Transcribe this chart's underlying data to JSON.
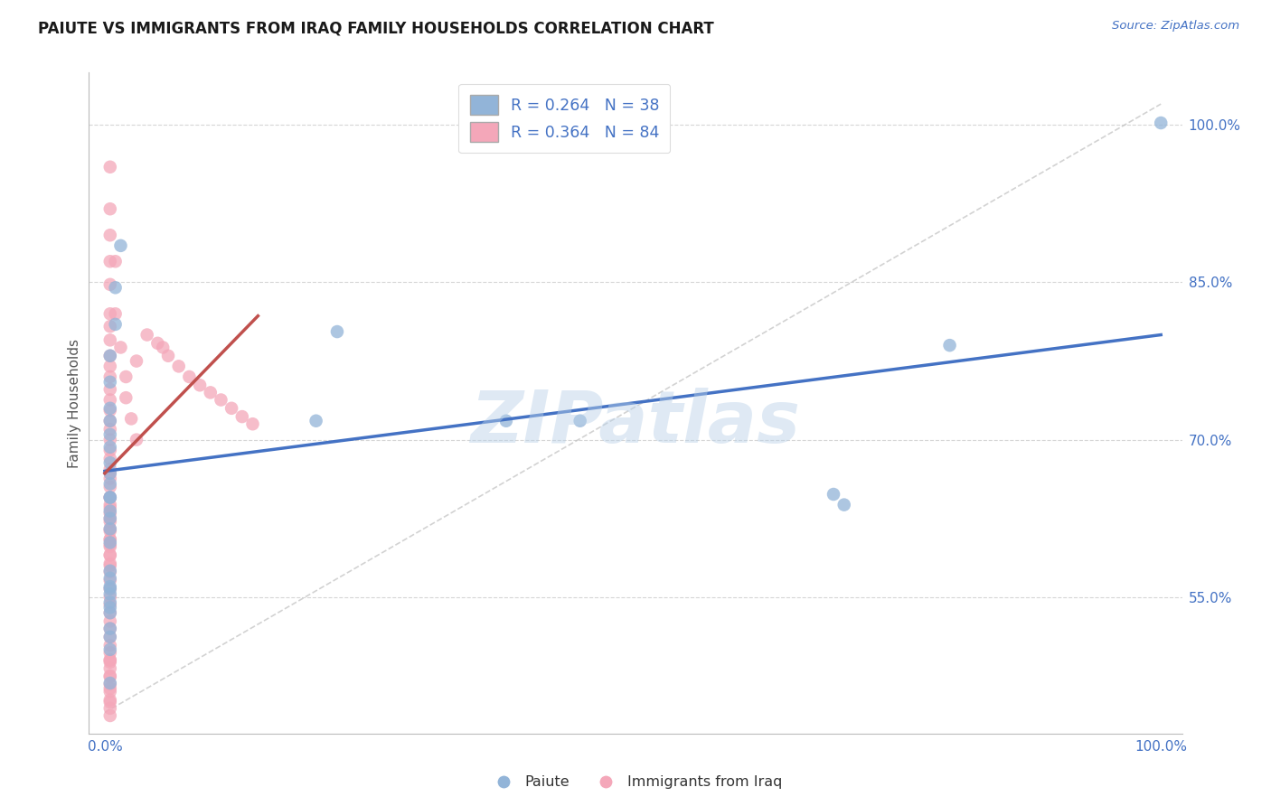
{
  "title": "PAIUTE VS IMMIGRANTS FROM IRAQ FAMILY HOUSEHOLDS CORRELATION CHART",
  "source": "Source: ZipAtlas.com",
  "ylabel": "Family Households",
  "legend_label1": "Paiute",
  "legend_label2": "Immigrants from Iraq",
  "r1": 0.264,
  "n1": 38,
  "r2": 0.364,
  "n2": 84,
  "color_blue": "#92b4d8",
  "color_pink": "#f4a7b9",
  "color_blue_line": "#4472c4",
  "color_pink_line": "#c0504d",
  "background_color": "#FFFFFF",
  "watermark": "ZIPatlas",
  "watermark_color": "#b8d0e8",
  "paiute_x": [
    0.015,
    0.01,
    0.01,
    0.005,
    0.005,
    0.005,
    0.005,
    0.005,
    0.005,
    0.005,
    0.005,
    0.005,
    0.005,
    0.005,
    0.005,
    0.005,
    0.22,
    0.2,
    0.38,
    0.005,
    0.005,
    0.005,
    0.005,
    0.005,
    0.45,
    0.005,
    0.005,
    0.005,
    0.005,
    0.005,
    0.005,
    0.69,
    0.7,
    0.8,
    0.005,
    1.0,
    0.005,
    0.005
  ],
  "paiute_y": [
    0.885,
    0.845,
    0.81,
    0.78,
    0.755,
    0.73,
    0.718,
    0.705,
    0.693,
    0.678,
    0.668,
    0.658,
    0.645,
    0.632,
    0.625,
    0.615,
    0.803,
    0.718,
    0.718,
    0.602,
    0.575,
    0.568,
    0.56,
    0.553,
    0.718,
    0.545,
    0.54,
    0.535,
    0.52,
    0.512,
    0.5,
    0.648,
    0.638,
    0.79,
    0.468,
    1.002,
    0.558,
    0.645
  ],
  "iraq_x": [
    0.005,
    0.005,
    0.005,
    0.005,
    0.005,
    0.005,
    0.005,
    0.005,
    0.005,
    0.005,
    0.005,
    0.005,
    0.005,
    0.005,
    0.005,
    0.005,
    0.005,
    0.005,
    0.005,
    0.005,
    0.005,
    0.005,
    0.005,
    0.005,
    0.005,
    0.005,
    0.005,
    0.005,
    0.005,
    0.005,
    0.005,
    0.005,
    0.005,
    0.005,
    0.005,
    0.005,
    0.005,
    0.005,
    0.005,
    0.005,
    0.005,
    0.005,
    0.005,
    0.005,
    0.005,
    0.005,
    0.005,
    0.005,
    0.005,
    0.005,
    0.005,
    0.005,
    0.005,
    0.005,
    0.005,
    0.005,
    0.005,
    0.005,
    0.005,
    0.005,
    0.01,
    0.01,
    0.015,
    0.02,
    0.02,
    0.025,
    0.03,
    0.03,
    0.04,
    0.05,
    0.055,
    0.06,
    0.07,
    0.08,
    0.09,
    0.1,
    0.11,
    0.12,
    0.13,
    0.14,
    0.005,
    0.005,
    0.005,
    0.005
  ],
  "iraq_y": [
    0.96,
    0.92,
    0.895,
    0.87,
    0.848,
    0.82,
    0.808,
    0.795,
    0.78,
    0.77,
    0.76,
    0.748,
    0.738,
    0.728,
    0.718,
    0.71,
    0.7,
    0.69,
    0.682,
    0.672,
    0.663,
    0.655,
    0.645,
    0.638,
    0.63,
    0.622,
    0.613,
    0.605,
    0.598,
    0.59,
    0.582,
    0.574,
    0.566,
    0.558,
    0.55,
    0.543,
    0.535,
    0.527,
    0.52,
    0.512,
    0.504,
    0.497,
    0.49,
    0.482,
    0.474,
    0.467,
    0.46,
    0.452,
    0.444,
    0.437,
    0.668,
    0.645,
    0.635,
    0.625,
    0.615,
    0.605,
    0.6,
    0.59,
    0.58,
    0.49,
    0.87,
    0.82,
    0.788,
    0.76,
    0.74,
    0.72,
    0.775,
    0.7,
    0.8,
    0.792,
    0.788,
    0.78,
    0.77,
    0.76,
    0.752,
    0.745,
    0.738,
    0.73,
    0.722,
    0.715,
    0.488,
    0.475,
    0.463,
    0.45
  ],
  "blue_line_x": [
    0.0,
    1.0
  ],
  "blue_line_y": [
    0.67,
    0.8
  ],
  "pink_line_x": [
    0.0,
    0.145
  ],
  "pink_line_y": [
    0.668,
    0.818
  ],
  "ref_line_x": [
    0.0,
    1.0
  ],
  "ref_line_y": [
    0.44,
    1.02
  ],
  "xlim": [
    -0.015,
    1.02
  ],
  "ylim": [
    0.42,
    1.05
  ],
  "ytick_pos": [
    0.55,
    0.7,
    0.85,
    1.0
  ],
  "ytick_labels": [
    "55.0%",
    "70.0%",
    "85.0%",
    "100.0%"
  ],
  "xtick_pos": [
    0.0,
    0.5,
    1.0
  ],
  "xtick_labels": [
    "0.0%",
    "",
    "100.0%"
  ]
}
